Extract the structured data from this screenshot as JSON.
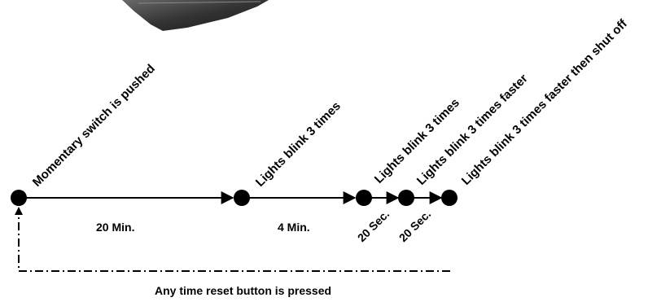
{
  "steps": [
    {
      "label": "Momentary switch is pushed"
    },
    {
      "label": "Lights blink 3 times"
    },
    {
      "label": "Lights blink 3 times"
    },
    {
      "label": "Lights blink 3 times faster"
    },
    {
      "label": "Lights blink 3 times faster then shut off"
    }
  ],
  "durations": [
    {
      "label": "20 Min."
    },
    {
      "label": "4 Min."
    },
    {
      "label": "20 Sec."
    },
    {
      "label": "20 Sec."
    }
  ],
  "reset": {
    "label": "Any time reset button is pressed"
  },
  "colors": {
    "ink": "#000000",
    "device": "#3a3a3a"
  }
}
